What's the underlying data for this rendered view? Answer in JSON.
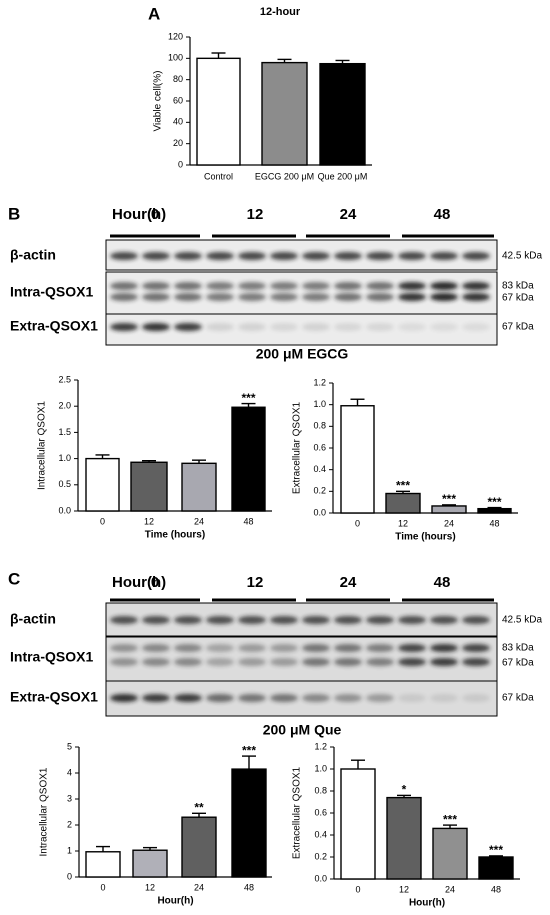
{
  "panel_labels": [
    "A",
    "B",
    "C"
  ],
  "blots": [
    {
      "header": "Hour(h)",
      "timepoints": [
        "0",
        "12",
        "24",
        "48"
      ],
      "rows": [
        "β-actin",
        "Intra-QSOX1",
        "Extra-QSOX1"
      ],
      "markers": [
        "42.5 kDa",
        "83 kDa",
        "67 kDa",
        "67 kDa"
      ],
      "caption": "200 μM EGCG"
    },
    {
      "header": "Hour(h)",
      "timepoints": [
        "0",
        "12",
        "24",
        "48"
      ],
      "rows": [
        "β-actin",
        "Intra-QSOX1",
        "Extra-QSOX1"
      ],
      "markers": [
        "42.5 kDa",
        "83 kDa",
        "67 kDa",
        "67 kDa"
      ],
      "caption": "200 μM Que"
    }
  ],
  "chart_data": [
    {
      "type": "bar",
      "title": "12-hour",
      "y_label": "Viable cell(%)",
      "categories": [
        "Control",
        "EGCG 200 μM",
        "Que 200 μM"
      ],
      "values": [
        100,
        96,
        95
      ],
      "errors": [
        5,
        3,
        3
      ],
      "colors": [
        "#ffffff",
        "#8c8c8c",
        "#000000"
      ],
      "ylim": [
        0,
        120
      ],
      "yticks": [
        0,
        20,
        40,
        60,
        80,
        100,
        120
      ]
    },
    {
      "type": "bar",
      "y_label": "Intracellular QSOX1",
      "x_label": "Time (hours)",
      "categories": [
        "0",
        "12",
        "24",
        "48"
      ],
      "values": [
        1.0,
        0.93,
        0.91,
        1.98
      ],
      "errors": [
        0.07,
        0.03,
        0.06,
        0.07
      ],
      "annotations": [
        null,
        null,
        null,
        "***"
      ],
      "colors": [
        "#ffffff",
        "#606060",
        "#a8a8b0",
        "#000000"
      ],
      "ylim": [
        0,
        2.5
      ],
      "yticks": [
        {
          "value": 0,
          "label": "0.0"
        },
        0.5,
        {
          "value": 1,
          "label": "1.0"
        },
        1.5,
        {
          "value": 2,
          "label": "2.0"
        },
        2.5
      ]
    },
    {
      "type": "bar",
      "y_label": "Extracellular QSOX1",
      "x_label": "Time (hours)",
      "categories": [
        "0",
        "12",
        "24",
        "48"
      ],
      "values": [
        0.99,
        0.18,
        0.065,
        0.04
      ],
      "errors": [
        0.06,
        0.02,
        0.01,
        0.01
      ],
      "annotations": [
        null,
        "***",
        "***",
        "***"
      ],
      "colors": [
        "#ffffff",
        "#606060",
        "#a8a8b0",
        "#000000"
      ],
      "ylim": [
        0,
        1.2
      ],
      "yticks": [
        {
          "value": 0,
          "label": "0.0"
        },
        0.2,
        0.4,
        0.6,
        0.8,
        {
          "value": 1,
          "label": "1.0"
        },
        1.2
      ]
    },
    {
      "type": "bar",
      "y_label": "Intracellular QSOX1",
      "x_label": "Hour(h)",
      "categories": [
        "0",
        "12",
        "24",
        "48"
      ],
      "values": [
        0.97,
        1.03,
        2.3,
        4.15
      ],
      "errors": [
        0.2,
        0.1,
        0.15,
        0.5
      ],
      "annotations": [
        null,
        null,
        "**",
        "***"
      ],
      "colors": [
        "#ffffff",
        "#b0b0b8",
        "#606060",
        "#000000"
      ],
      "ylim": [
        0,
        5
      ],
      "yticks": [
        0,
        1,
        2,
        3,
        4,
        5
      ]
    },
    {
      "type": "bar",
      "y_label": "Extracellular QSOX1",
      "x_label": "Hour(h)",
      "categories": [
        "0",
        "12",
        "24",
        "48"
      ],
      "values": [
        1.0,
        0.74,
        0.46,
        0.2
      ],
      "errors": [
        0.08,
        0.02,
        0.03,
        0.01
      ],
      "annotations": [
        null,
        "*",
        "***",
        "***"
      ],
      "colors": [
        "#ffffff",
        "#606060",
        "#909090",
        "#000000"
      ],
      "ylim": [
        0,
        1.2
      ],
      "yticks": [
        {
          "value": 0,
          "label": "0.0"
        },
        0.2,
        0.4,
        0.6,
        0.8,
        {
          "value": 1,
          "label": "1.0"
        },
        1.2
      ]
    }
  ]
}
